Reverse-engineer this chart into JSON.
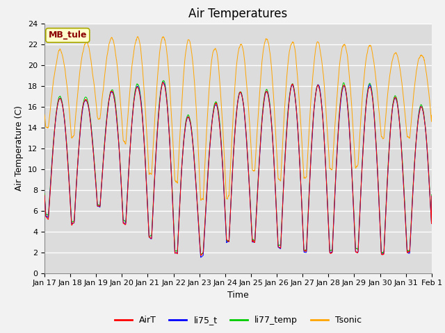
{
  "title": "Air Temperatures",
  "ylabel": "Air Temperature (C)",
  "xlabel": "Time",
  "annotation": "MB_tule",
  "ylim": [
    0,
    24
  ],
  "yticks": [
    0,
    2,
    4,
    6,
    8,
    10,
    12,
    14,
    16,
    18,
    20,
    22,
    24
  ],
  "xtick_labels": [
    "Jan 17",
    "Jan 18",
    "Jan 19",
    "Jan 20",
    "Jan 21",
    "Jan 22",
    "Jan 23",
    "Jan 24",
    "Jan 25",
    "Jan 26",
    "Jan 27",
    "Jan 28",
    "Jan 29",
    "Jan 30",
    "Jan 31",
    "Feb 1"
  ],
  "series_colors": {
    "AirT": "#ff0000",
    "li75_t": "#0000ff",
    "li77_temp": "#00cc00",
    "Tsonic": "#ffa500"
  },
  "bg_color": "#dcdcdc",
  "grid_color": "#ffffff",
  "title_fontsize": 12,
  "axis_fontsize": 9,
  "tick_fontsize": 8,
  "legend_fontsize": 9,
  "n_points_per_day": 144,
  "n_days": 15
}
